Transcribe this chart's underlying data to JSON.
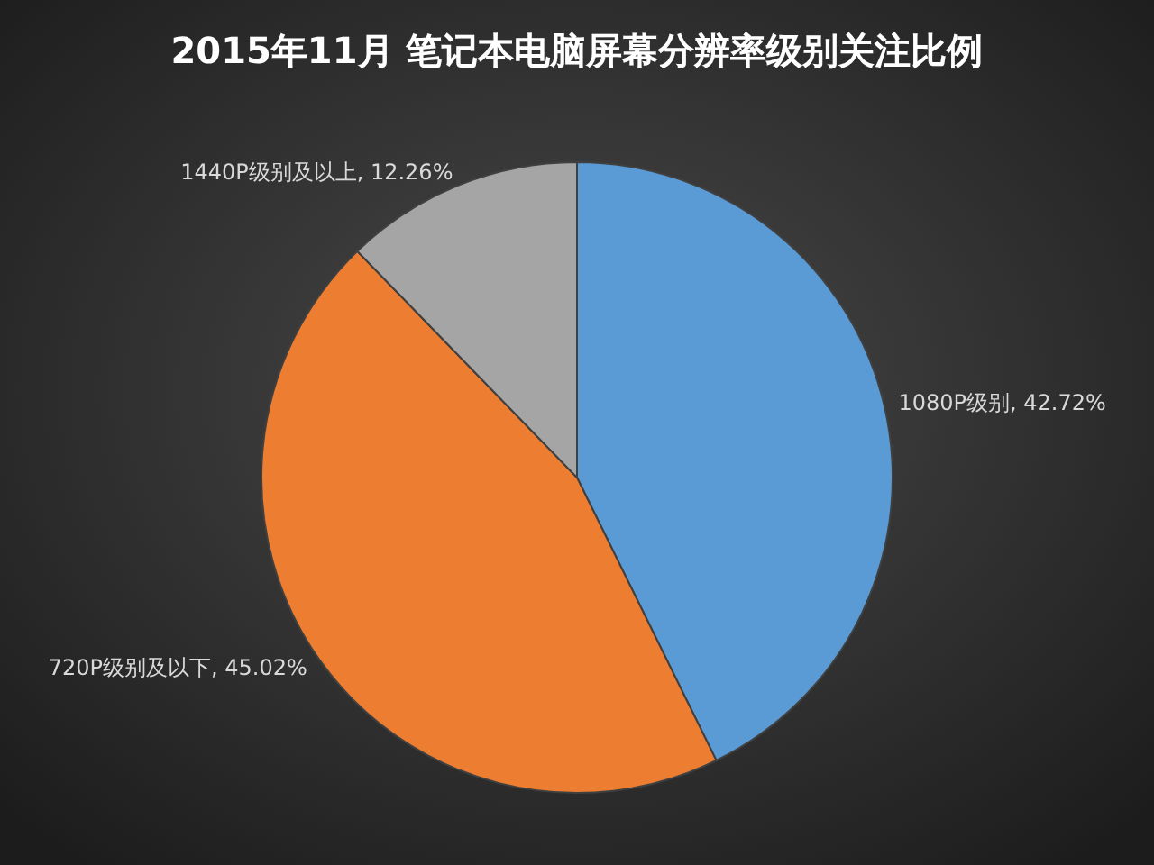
{
  "chart_data": {
    "type": "pie",
    "title": "2015年11月  笔记本电脑屏幕分辨率级别关注比例",
    "categories": [
      "1080P级别",
      "720P级别及以下",
      "1440P级别及以上"
    ],
    "values": [
      42.72,
      45.02,
      12.26
    ],
    "value_labels": [
      "42.72%",
      "45.02%",
      "12.26%"
    ],
    "colors": [
      "#5b9bd5",
      "#ed7d31",
      "#a5a5a5"
    ]
  }
}
